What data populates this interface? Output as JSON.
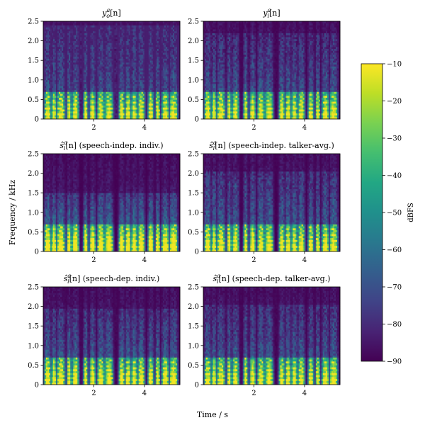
{
  "figure": {
    "ylabel": "Frequency / kHz",
    "xlabel": "Time / s"
  },
  "colorbar": {
    "label": "dBFS",
    "ticks": [
      -10,
      -20,
      -30,
      -40,
      -50,
      -60,
      -70,
      -80,
      -90
    ],
    "tick_labels": [
      "−10",
      "−20",
      "−30",
      "−40",
      "−50",
      "−60",
      "−70",
      "−80",
      "−90"
    ],
    "colormap": "viridis",
    "colors": [
      "#440154",
      "#3b528b",
      "#21918c",
      "#5ec962",
      "#fde725"
    ]
  },
  "panels": [
    {
      "title_base": "y",
      "title_accent": "a",
      "title_sub": "o",
      "title_suffix": "[n]",
      "title_note": ""
    },
    {
      "title_base": "y",
      "title_accent": "a",
      "title_sub": "i",
      "title_suffix": "[n]",
      "title_note": ""
    },
    {
      "title_base": "ŝ",
      "title_accent": "a",
      "title_sub": "i",
      "title_suffix": "[n]",
      "title_note": " (speech-indep. indiv.)"
    },
    {
      "title_base": "ŝ",
      "title_accent": "a",
      "title_sub": "i",
      "title_suffix": "[n]",
      "title_note": " (speech-indep. talker-avg.)"
    },
    {
      "title_base": "ŝ",
      "title_accent": "a",
      "title_sub": "i",
      "title_suffix": "[n]",
      "title_note": " (speech-dep. indiv.)"
    },
    {
      "title_base": "ŝ",
      "title_accent": "a",
      "title_sub": "i",
      "title_suffix": "[n]",
      "title_note": " (speech-dep. talker-avg.)"
    }
  ],
  "chart_data": {
    "type": "heatmap",
    "subtype": "spectrogram grid (3 rows x 2 columns)",
    "xlabel": "Time / s",
    "ylabel": "Frequency / kHz",
    "x_ticks": [
      2,
      4
    ],
    "x_tick_labels": [
      "2",
      "4"
    ],
    "xlim": [
      0,
      5.4
    ],
    "y_ticks": [
      0,
      0.5,
      1.0,
      1.5,
      2.0,
      2.5
    ],
    "y_tick_labels": [
      "0",
      "0.5",
      "1.0",
      "1.5",
      "2.0",
      "2.5"
    ],
    "ylim": [
      0,
      2.5
    ],
    "color_range": [
      -90,
      -10
    ],
    "color_unit": "dBFS",
    "speech_segments_s": [
      [
        0.05,
        0.3
      ],
      [
        0.35,
        0.5
      ],
      [
        0.55,
        0.85
      ],
      [
        0.95,
        1.1
      ],
      [
        1.15,
        1.4
      ],
      [
        1.6,
        1.75
      ],
      [
        1.85,
        2.05
      ],
      [
        2.15,
        2.4
      ],
      [
        2.45,
        2.75
      ],
      [
        3.0,
        3.2
      ],
      [
        3.25,
        3.45
      ],
      [
        3.5,
        3.7
      ],
      [
        3.75,
        4.0
      ],
      [
        4.15,
        4.35
      ],
      [
        4.45,
        4.6
      ],
      [
        4.7,
        4.95
      ],
      [
        5.0,
        5.3
      ]
    ]
  }
}
